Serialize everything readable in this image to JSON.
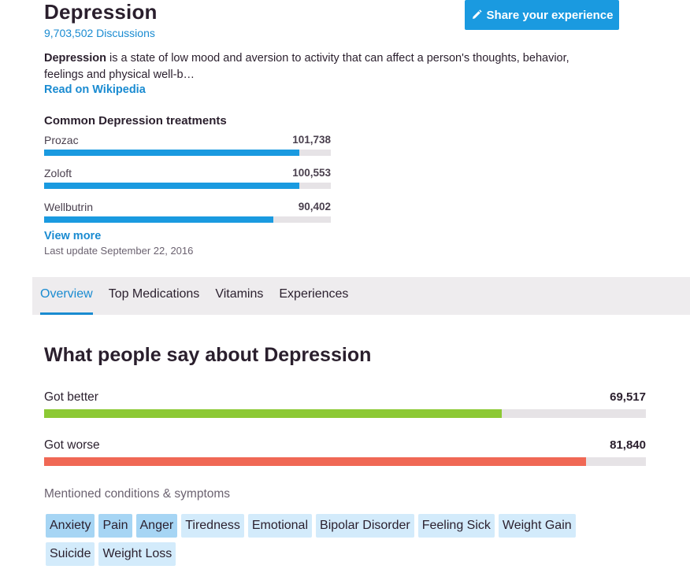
{
  "header": {
    "title": "Depression",
    "discussions": "9,703,502 Discussions",
    "share_button": "Share your experience"
  },
  "description": {
    "term": "Depression",
    "text": " is a state of low mood and aversion to activity that can affect a person's thoughts, behavior, feelings and physical well-b…",
    "wiki_link": "Read on Wikipedia"
  },
  "treatments": {
    "title": "Common Depression treatments",
    "items": [
      {
        "name": "Prozac",
        "count": "101,738",
        "value": 101738,
        "fill": 0.89
      },
      {
        "name": "Zoloft",
        "count": "100,553",
        "value": 100553,
        "fill": 0.89
      },
      {
        "name": "Wellbutrin",
        "count": "90,402",
        "value": 90402,
        "fill": 0.8
      }
    ],
    "view_more": "View more",
    "last_update": "Last update September 22, 2016"
  },
  "tabs": [
    {
      "label": "Overview",
      "active": true
    },
    {
      "label": "Top Medications",
      "active": false
    },
    {
      "label": "Vitamins",
      "active": false
    },
    {
      "label": "Experiences",
      "active": false
    }
  ],
  "outcomes": {
    "title": "What people say about Depression",
    "items": [
      {
        "label": "Got better",
        "count": "69,517",
        "value": 69517,
        "fill": 0.76,
        "color": "#8cc934"
      },
      {
        "label": "Got worse",
        "count": "81,840",
        "value": 81840,
        "fill": 0.9,
        "color": "#f06855"
      }
    ]
  },
  "mentioned": {
    "title": "Mentioned conditions & symptoms",
    "tags": [
      {
        "label": "Anxiety",
        "strong": true
      },
      {
        "label": "Pain",
        "strong": true
      },
      {
        "label": "Anger",
        "strong": true
      },
      {
        "label": "Tiredness",
        "strong": false
      },
      {
        "label": "Emotional",
        "strong": false
      },
      {
        "label": "Bipolar Disorder",
        "strong": false
      },
      {
        "label": "Feeling Sick",
        "strong": false
      },
      {
        "label": "Weight Gain",
        "strong": false
      },
      {
        "label": "Suicide",
        "strong": false
      },
      {
        "label": "Weight Loss",
        "strong": false
      }
    ]
  },
  "colors": {
    "accent": "#1a9ae0",
    "link": "#1a8bd1",
    "better": "#8cc934",
    "worse": "#f06855"
  },
  "icons": {
    "share": "pencil-icon"
  }
}
